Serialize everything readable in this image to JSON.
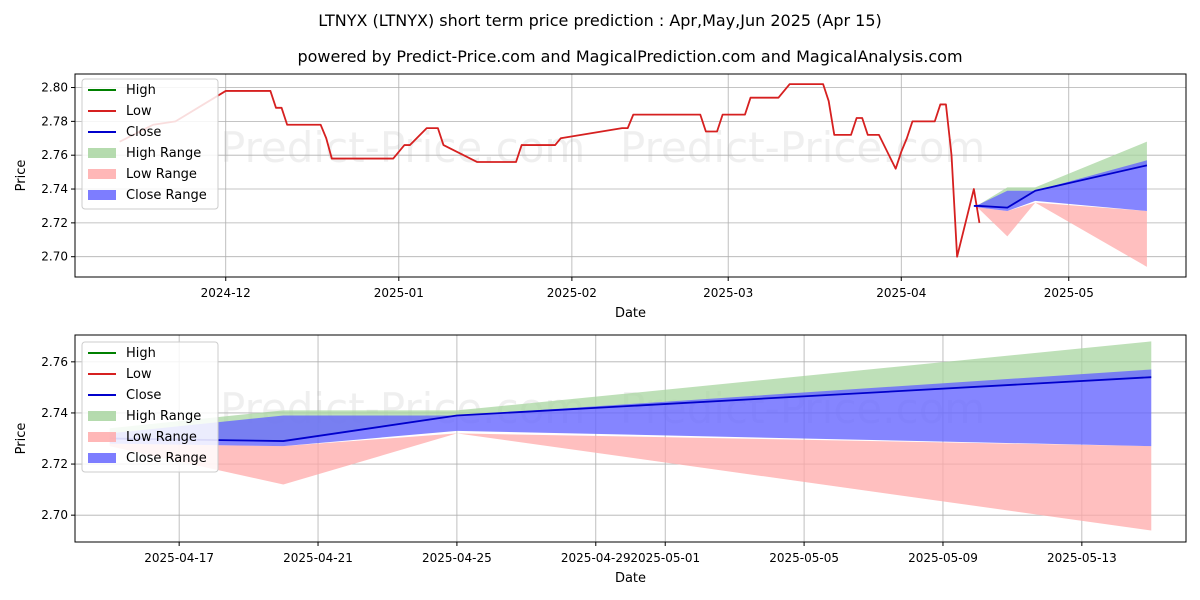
{
  "watermark": "Predict-Price.com",
  "titles": {
    "main": "LTNYX (LTNYX) short term price prediction : Apr,May,Jun 2025 (Apr 15)",
    "sub": "powered by Predict-Price.com and MagicalPrediction.com and MagicalAnalysis.com"
  },
  "colors": {
    "high": "#008000",
    "low": "#d62020",
    "close": "#0000cc",
    "high_range": "#a8d5a0",
    "low_range": "#ffaaaa",
    "close_range": "#6666ff"
  },
  "legend": {
    "items": [
      {
        "label": "High",
        "kind": "line",
        "color": "#008000"
      },
      {
        "label": "Low",
        "kind": "line",
        "color": "#d62020"
      },
      {
        "label": "Close",
        "kind": "line",
        "color": "#0000cc"
      },
      {
        "label": "High Range",
        "kind": "patch",
        "color": "#a8d5a0"
      },
      {
        "label": "Low Range",
        "kind": "patch",
        "color": "#ffaaaa"
      },
      {
        "label": "Close Range",
        "kind": "patch",
        "color": "#6666ff"
      }
    ]
  },
  "chart_data": [
    {
      "type": "line",
      "xlabel": "Date",
      "ylabel": "Price",
      "xlim": [
        "2024-11-04",
        "2025-05-22"
      ],
      "ylim": [
        2.688,
        2.808
      ],
      "xticks": [
        {
          "date": "2024-12-01",
          "label": "2024-12"
        },
        {
          "date": "2025-01-01",
          "label": "2025-01"
        },
        {
          "date": "2025-02-01",
          "label": "2025-02"
        },
        {
          "date": "2025-03-01",
          "label": "2025-03"
        },
        {
          "date": "2025-04-01",
          "label": "2025-04"
        },
        {
          "date": "2025-05-01",
          "label": "2025-05"
        }
      ],
      "yticks": [
        2.7,
        2.72,
        2.74,
        2.76,
        2.78,
        2.8
      ],
      "grid": true,
      "legend_position": "top-left",
      "series": [
        {
          "name": "Low",
          "x": [
            "2024-11-12",
            "2024-11-18",
            "2024-11-22",
            "2024-11-27",
            "2024-12-01",
            "2024-12-02",
            "2024-12-09",
            "2024-12-10",
            "2024-12-11",
            "2024-12-12",
            "2024-12-18",
            "2024-12-19",
            "2024-12-20",
            "2024-12-30",
            "2024-12-31",
            "2025-01-02",
            "2025-01-03",
            "2025-01-06",
            "2025-01-07",
            "2025-01-08",
            "2025-01-09",
            "2025-01-15",
            "2025-01-16",
            "2025-01-17",
            "2025-01-22",
            "2025-01-23",
            "2025-01-24",
            "2025-01-27",
            "2025-01-29",
            "2025-01-30",
            "2025-02-10",
            "2025-02-11",
            "2025-02-12",
            "2025-02-13",
            "2025-02-24",
            "2025-02-25",
            "2025-02-27",
            "2025-02-28",
            "2025-03-04",
            "2025-03-05",
            "2025-03-10",
            "2025-03-12",
            "2025-03-18",
            "2025-03-19",
            "2025-03-20",
            "2025-03-23",
            "2025-03-24",
            "2025-03-25",
            "2025-03-26",
            "2025-03-28",
            "2025-03-31",
            "2025-04-01",
            "2025-04-02",
            "2025-04-03",
            "2025-04-07",
            "2025-04-08",
            "2025-04-09",
            "2025-04-10",
            "2025-04-11",
            "2025-04-14",
            "2025-04-15"
          ],
          "y": [
            2.768,
            2.778,
            2.78,
            2.79,
            2.798,
            2.798,
            2.798,
            2.788,
            2.788,
            2.778,
            2.778,
            2.77,
            2.758,
            2.758,
            2.758,
            2.766,
            2.766,
            2.776,
            2.776,
            2.776,
            2.766,
            2.756,
            2.756,
            2.756,
            2.756,
            2.766,
            2.766,
            2.766,
            2.766,
            2.77,
            2.776,
            2.776,
            2.784,
            2.784,
            2.784,
            2.774,
            2.774,
            2.784,
            2.784,
            2.794,
            2.794,
            2.802,
            2.802,
            2.792,
            2.772,
            2.772,
            2.782,
            2.782,
            2.772,
            2.772,
            2.752,
            2.762,
            2.77,
            2.78,
            2.78,
            2.79,
            2.79,
            2.76,
            2.7,
            2.74,
            2.72
          ]
        },
        {
          "name": "Close",
          "x": [
            "2025-04-14",
            "2025-04-15",
            "2025-04-20",
            "2025-04-25",
            "2025-05-15"
          ],
          "y": [
            2.73,
            2.73,
            2.729,
            2.739,
            2.754
          ]
        }
      ],
      "ranges": [
        {
          "name": "High Range",
          "x": [
            "2025-04-14",
            "2025-04-15",
            "2025-04-20",
            "2025-04-25",
            "2025-05-15"
          ],
          "upper": [
            2.73,
            2.731,
            2.741,
            2.741,
            2.768
          ],
          "lower": [
            2.73,
            2.73,
            2.729,
            2.739,
            2.754
          ]
        },
        {
          "name": "Low Range",
          "x": [
            "2025-04-14",
            "2025-04-15",
            "2025-04-20",
            "2025-04-25",
            "2025-05-15"
          ],
          "upper": [
            2.73,
            2.729,
            2.727,
            2.732,
            2.727
          ],
          "lower": [
            2.73,
            2.728,
            2.712,
            2.732,
            2.694
          ]
        },
        {
          "name": "Close Range",
          "x": [
            "2025-04-14",
            "2025-04-15",
            "2025-04-20",
            "2025-04-25",
            "2025-05-15"
          ],
          "upper": [
            2.73,
            2.731,
            2.739,
            2.739,
            2.757
          ],
          "lower": [
            2.73,
            2.729,
            2.727,
            2.733,
            2.727
          ]
        }
      ]
    },
    {
      "type": "line",
      "xlabel": "Date",
      "ylabel": "Price",
      "xlim": [
        "2025-04-14",
        "2025-05-16"
      ],
      "ylim": [
        2.6895,
        2.7705
      ],
      "xticks": [
        {
          "date": "2025-04-17",
          "label": "2025-04-17"
        },
        {
          "date": "2025-04-21",
          "label": "2025-04-21"
        },
        {
          "date": "2025-04-25",
          "label": "2025-04-25"
        },
        {
          "date": "2025-04-29",
          "label": "2025-04-29"
        },
        {
          "date": "2025-05-01",
          "label": "2025-05-01"
        },
        {
          "date": "2025-05-05",
          "label": "2025-05-05"
        },
        {
          "date": "2025-05-09",
          "label": "2025-05-09"
        },
        {
          "date": "2025-05-13",
          "label": "2025-05-13"
        }
      ],
      "yticks": [
        2.7,
        2.72,
        2.74,
        2.76
      ],
      "grid": true,
      "legend_position": "top-left",
      "series": [
        {
          "name": "Close",
          "x": [
            "2025-04-15",
            "2025-04-20",
            "2025-04-25",
            "2025-05-15"
          ],
          "y": [
            2.73,
            2.729,
            2.739,
            2.754
          ]
        }
      ],
      "ranges": [
        {
          "name": "High Range",
          "x": [
            "2025-04-15",
            "2025-04-20",
            "2025-04-25",
            "2025-05-15"
          ],
          "upper": [
            2.734,
            2.741,
            2.741,
            2.768
          ],
          "lower": [
            2.73,
            2.729,
            2.739,
            2.754
          ]
        },
        {
          "name": "Low Range",
          "x": [
            "2025-04-15",
            "2025-04-20",
            "2025-04-25",
            "2025-05-15"
          ],
          "upper": [
            2.728,
            2.727,
            2.732,
            2.727
          ],
          "lower": [
            2.727,
            2.712,
            2.732,
            2.694
          ]
        },
        {
          "name": "Close Range",
          "x": [
            "2025-04-15",
            "2025-04-20",
            "2025-04-25",
            "2025-05-15"
          ],
          "upper": [
            2.732,
            2.739,
            2.739,
            2.757
          ],
          "lower": [
            2.728,
            2.727,
            2.733,
            2.727
          ]
        }
      ]
    }
  ]
}
